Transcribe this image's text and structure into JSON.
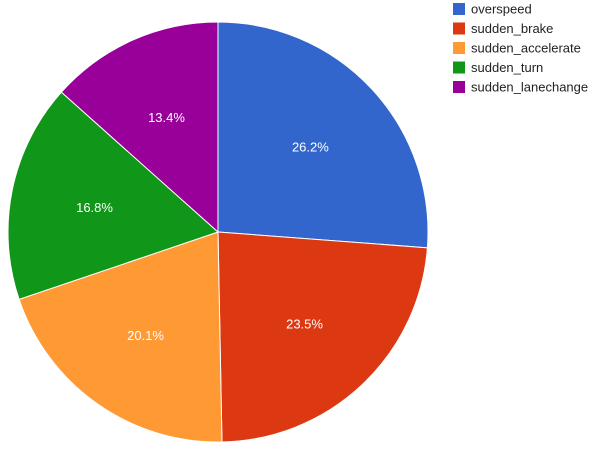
{
  "chart_data": {
    "type": "pie",
    "categories": [
      "overspeed",
      "sudden_brake",
      "sudden_accelerate",
      "sudden_turn",
      "sudden_lanechange"
    ],
    "values": [
      26.2,
      23.5,
      20.1,
      16.8,
      13.4
    ],
    "labels": [
      "26.2%",
      "23.5%",
      "20.1%",
      "16.8%",
      "13.4%"
    ],
    "colors": [
      "#3366cc",
      "#dc3912",
      "#ff9933",
      "#109618",
      "#990099"
    ],
    "legend_position": "top-right",
    "start": "top",
    "direction": "clockwise"
  }
}
